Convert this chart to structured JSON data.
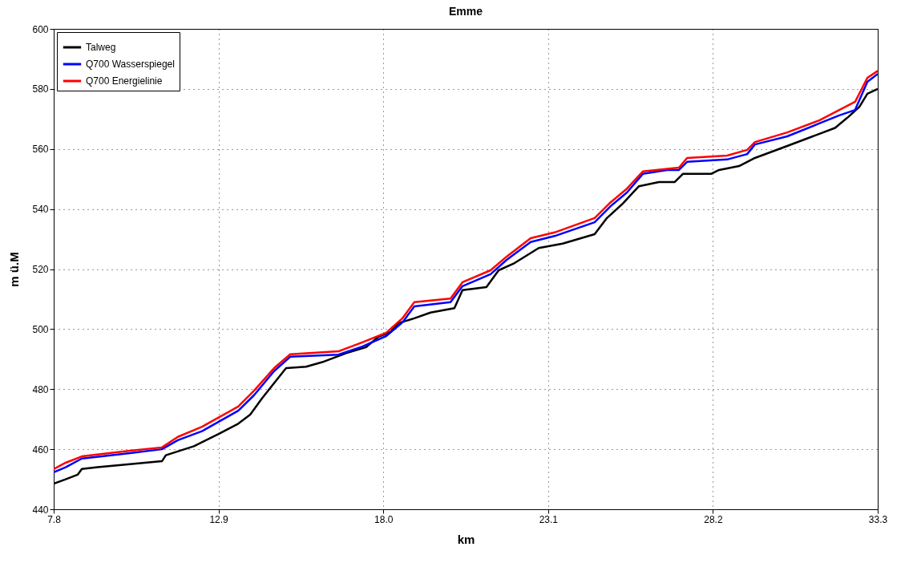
{
  "chart_data": {
    "type": "line",
    "title": "Emme",
    "xlabel": "km",
    "ylabel": "m ü.M",
    "xlim": [
      7.8,
      33.3
    ],
    "ylim": [
      440,
      600
    ],
    "xticks": [
      7.8,
      12.9,
      {
        "value": 18,
        "label": "18.0"
      },
      23.1,
      28.2,
      33.3
    ],
    "yticks": [
      440,
      460,
      480,
      500,
      520,
      540,
      560,
      580,
      600
    ],
    "grid": true,
    "legend": "top left",
    "line_style": "solid",
    "marker": "none",
    "series": [
      {
        "name": "Talweg",
        "color": "#000000",
        "x": [
          7.8,
          8.17,
          8.54,
          8.67,
          9.16,
          10.16,
          11.15,
          11.27,
          12.14,
          12.89,
          13.51,
          13.88,
          14.25,
          14.62,
          14.99,
          15.61,
          16.11,
          16.85,
          17.47,
          17.85,
          18.22,
          18.47,
          18.96,
          19.46,
          20.2,
          20.45,
          21.19,
          21.57,
          22.06,
          22.81,
          23.55,
          24.54,
          24.92,
          25.41,
          25.91,
          26.53,
          27.02,
          27.27,
          28.14,
          28.39,
          29.01,
          29.5,
          30.5,
          31.24,
          31.98,
          32.36,
          32.73,
          32.98,
          33.3
        ],
        "values": [
          448.5,
          450,
          451.5,
          453.4,
          454,
          455,
          456,
          458,
          461,
          465,
          468.5,
          471.5,
          477,
          482,
          487,
          487.5,
          489,
          492,
          494,
          497.5,
          499,
          502,
          503.6,
          505.5,
          507,
          513,
          514,
          519.6,
          522,
          527,
          528.5,
          531.6,
          537,
          541.8,
          547.6,
          549,
          549,
          551.7,
          551.7,
          553,
          554.3,
          557,
          561,
          564,
          567,
          570.4,
          574,
          578.4,
          580
        ]
      },
      {
        "name": "Q700 Wasserspiegel",
        "color": "#0000ff",
        "x": [
          7.8,
          8.17,
          8.67,
          9.29,
          10.16,
          11.15,
          11.64,
          12.39,
          13.51,
          14.0,
          14.62,
          15.12,
          16.61,
          17.35,
          18.09,
          18.59,
          18.96,
          20.08,
          20.45,
          21.32,
          21.81,
          22.56,
          23.3,
          24.54,
          25.04,
          25.54,
          26.03,
          26.78,
          27.15,
          27.4,
          28.64,
          29.26,
          29.5,
          30.5,
          31.49,
          32.11,
          32.6,
          32.98,
          33.3
        ],
        "values": [
          452.3,
          454,
          456.9,
          457.6,
          458.7,
          460,
          463,
          466,
          472.8,
          478,
          486,
          490.8,
          491.5,
          494.2,
          497.7,
          502.2,
          507.6,
          509,
          514.3,
          518.3,
          523,
          529,
          531,
          535.6,
          541,
          545.5,
          551.7,
          553,
          553,
          555.7,
          556.5,
          558.3,
          561.5,
          564.2,
          568.5,
          571.2,
          573,
          582.4,
          585
        ]
      },
      {
        "name": "Q700 Energielinie",
        "color": "#ff0000",
        "x": [
          7.8,
          8.17,
          8.67,
          10.16,
          11.15,
          11.64,
          12.39,
          13.51,
          14.0,
          14.62,
          15.12,
          16.61,
          17.35,
          18.09,
          18.59,
          18.96,
          20.08,
          20.45,
          21.32,
          21.81,
          22.56,
          23.3,
          24.54,
          25.04,
          25.54,
          26.03,
          27.15,
          27.4,
          28.64,
          29.26,
          29.5,
          30.5,
          31.49,
          32.11,
          32.6,
          32.98,
          33.3
        ],
        "values": [
          453.4,
          455.5,
          457.6,
          459.5,
          460.6,
          464.1,
          467.5,
          474.2,
          479.5,
          487,
          491.6,
          492.6,
          495.6,
          498.8,
          503.6,
          509,
          510.2,
          515.6,
          519.6,
          524.1,
          530.3,
          532.2,
          537,
          542.3,
          546.8,
          552.5,
          553.8,
          557,
          557.8,
          559.7,
          562.3,
          565.5,
          569.5,
          573,
          575.7,
          583.7,
          586
        ]
      }
    ]
  }
}
